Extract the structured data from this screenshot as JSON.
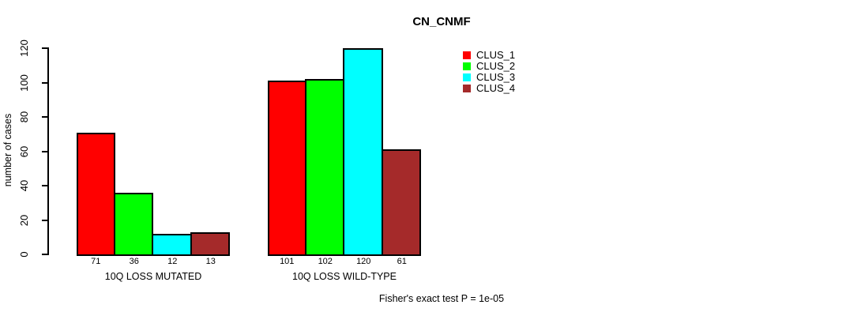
{
  "chart_data": {
    "type": "bar",
    "title": "CN_CNMF",
    "ylabel": "number of cases",
    "ylim": [
      0,
      120
    ],
    "yticks": [
      0,
      20,
      40,
      60,
      80,
      100,
      120
    ],
    "grid": false,
    "legend_position": "top-right",
    "categories": [
      "10Q LOSS MUTATED",
      "10Q LOSS WILD-TYPE"
    ],
    "series": [
      {
        "name": "CLUS_1",
        "color": "#FF0000",
        "values": [
          71,
          101
        ]
      },
      {
        "name": "CLUS_2",
        "color": "#00FF00",
        "values": [
          36,
          102
        ]
      },
      {
        "name": "CLUS_3",
        "color": "#00FFFF",
        "values": [
          12,
          120
        ]
      },
      {
        "name": "CLUS_4",
        "color": "#A52A2A",
        "values": [
          13,
          61
        ]
      }
    ],
    "bar_value_labels": [
      [
        71,
        36,
        12,
        13
      ],
      [
        101,
        102,
        120,
        61
      ]
    ],
    "bar_border_color": "#000000",
    "footnote": "Fisher's exact test P = 1e-05"
  }
}
